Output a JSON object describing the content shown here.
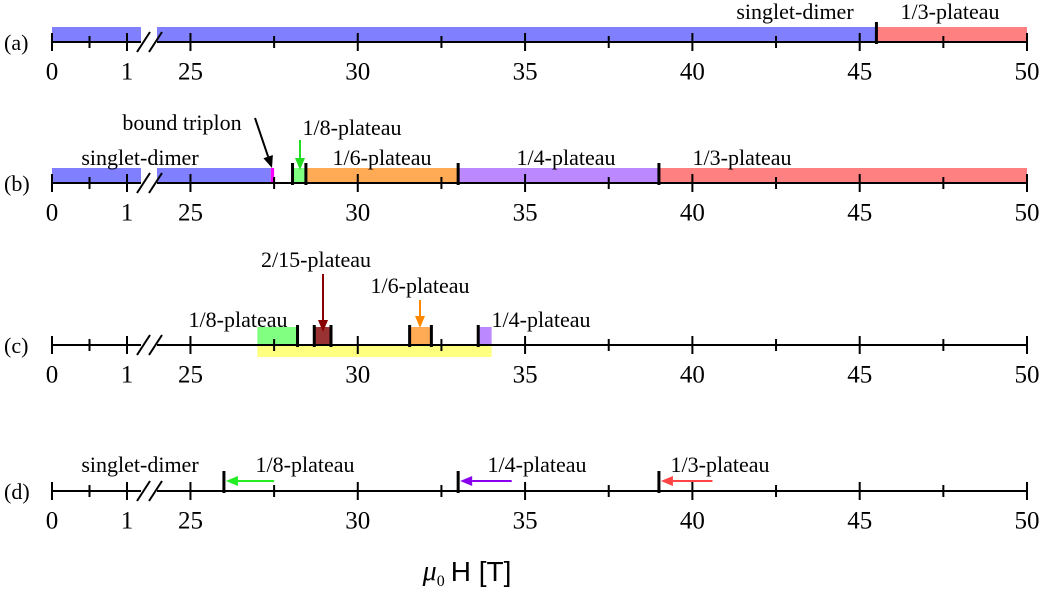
{
  "chart_data": [
    {
      "type": "interval",
      "label": "(a)",
      "segments": [
        {
          "xlim": [
            0,
            1.2
          ],
          "xticks": [
            0,
            1
          ],
          "minor_xticks": [
            0.5
          ]
        },
        {
          "xlim": [
            24,
            50
          ],
          "xticks": [
            25,
            30,
            35,
            40,
            45,
            50
          ],
          "minor_xticks": [
            27.5,
            32.5,
            37.5,
            42.5,
            47.5
          ]
        }
      ],
      "regions": [
        {
          "label": "singlet-dimer",
          "start": 0,
          "end": 45.5,
          "color": "#8080ff"
        },
        {
          "label": "1/3-plateau",
          "start": 45.5,
          "end": 50,
          "color": "#ff8080"
        }
      ],
      "boundaries": [
        45.5
      ]
    },
    {
      "type": "interval",
      "label": "(b)",
      "segments": [
        {
          "xlim": [
            0,
            1.2
          ],
          "xticks": [
            0,
            1
          ],
          "minor_xticks": [
            0.5
          ]
        },
        {
          "xlim": [
            24,
            50
          ],
          "xticks": [
            25,
            30,
            35,
            40,
            45,
            50
          ],
          "minor_xticks": [
            27.5,
            32.5,
            37.5,
            42.5,
            47.5
          ]
        }
      ],
      "regions": [
        {
          "label": "singlet-dimer",
          "start": 0,
          "end": 27.4,
          "color": "#8080ff"
        },
        {
          "label": "bound triplon",
          "start": 27.4,
          "end": 27.5,
          "color": "#ff00ff",
          "arrow_color": "#000000"
        },
        {
          "label": "1/8-plateau",
          "start": 28.05,
          "end": 28.45,
          "color": "#80ff80",
          "arrow_color": "#22dd22"
        },
        {
          "label": "1/6-plateau",
          "start": 28.45,
          "end": 33.0,
          "color": "#ffaa55"
        },
        {
          "label": "1/4-plateau",
          "start": 33.0,
          "end": 39.0,
          "color": "#bb88ff"
        },
        {
          "label": "1/3-plateau",
          "start": 39.0,
          "end": 50,
          "color": "#ff8080"
        }
      ],
      "boundaries": [
        28.05,
        28.45,
        33.0,
        39.0
      ]
    },
    {
      "type": "interval",
      "label": "(c)",
      "segments": [
        {
          "xlim": [
            0,
            1.2
          ],
          "xticks": [
            0,
            1
          ],
          "minor_xticks": [
            0.5
          ]
        },
        {
          "xlim": [
            24,
            50
          ],
          "xticks": [
            25,
            30,
            35,
            40,
            45,
            50
          ],
          "minor_xticks": [
            27.5,
            32.5,
            37.5,
            42.5,
            47.5
          ]
        }
      ],
      "regions": [
        {
          "start": 27.0,
          "end": 34.0,
          "color": "#ffff80"
        },
        {
          "label": "1/8-plateau",
          "start": 27.0,
          "end": 28.2,
          "color": "#80ff80"
        },
        {
          "label": "2/15-plateau",
          "start": 28.7,
          "end": 29.2,
          "color": "#993333",
          "arrow_color": "#880000"
        },
        {
          "label": "1/6-plateau",
          "start": 31.55,
          "end": 32.2,
          "color": "#ffaa55",
          "arrow_color": "#ff8800"
        },
        {
          "label": "1/4-plateau",
          "start": 33.6,
          "end": 34.0,
          "color": "#bb88ff"
        }
      ],
      "boundaries": [
        28.2,
        28.7,
        29.2,
        31.55,
        32.2,
        33.6
      ]
    },
    {
      "type": "interval",
      "label": "(d)",
      "segments": [
        {
          "xlim": [
            0,
            1.2
          ],
          "xticks": [
            0,
            1
          ],
          "minor_xticks": [
            0.5
          ]
        },
        {
          "xlim": [
            24,
            50
          ],
          "xticks": [
            25,
            30,
            35,
            40,
            45,
            50
          ],
          "minor_xticks": [
            27.5,
            32.5,
            37.5,
            42.5,
            47.5
          ]
        }
      ],
      "annotations": [
        "singlet-dimer",
        "1/8-plateau",
        "1/4-plateau",
        "1/3-plateau"
      ],
      "arrows": [
        {
          "from": 27.5,
          "to": 26.0,
          "color": "#22ee22"
        },
        {
          "from": 34.6,
          "to": 33.0,
          "color": "#8800ee"
        },
        {
          "from": 40.6,
          "to": 39.0,
          "color": "#ff4444"
        }
      ],
      "boundaries": [
        26.0,
        33.0,
        39.0
      ],
      "xlabel": [
        "μ",
        "0",
        "H [T]"
      ]
    }
  ]
}
